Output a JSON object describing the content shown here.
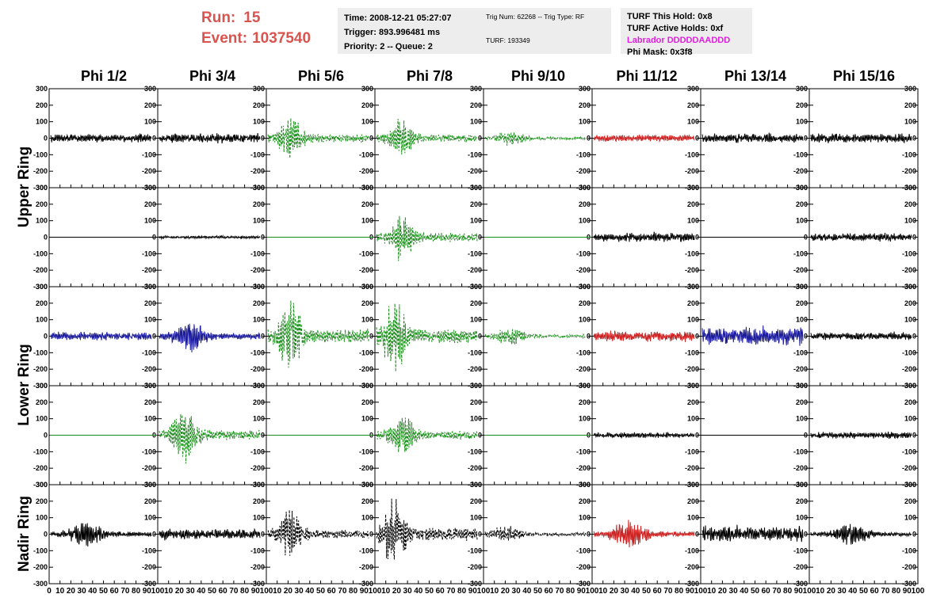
{
  "header": {
    "run_label": "Run:",
    "run_value": "15",
    "event_label": "Event:",
    "event_value": "1037540",
    "time": "Time: 2008-12-21 05:27:07",
    "trigger": "Trigger: 893.996481 ms",
    "priority": "Priority: 2 -- Queue: 2",
    "trig_num": "Trig Num: 62268 -- Trig Type: RF",
    "turf": "TURF: 193349",
    "turf_hold": "TURF This Hold: 0x8",
    "turf_active": "TURF Active Holds: 0xf",
    "labrador": "Labrador DDDDDAADDD",
    "phi_mask": "Phi Mask: 0x3f8"
  },
  "colors": {
    "run_text": "#d9534f",
    "labrador_text": "#e020e0",
    "black": "#000000",
    "green": "#1a8c1a",
    "blue": "#1c1c9c",
    "red": "#cc2222"
  },
  "chart_data": {
    "type": "line",
    "columns": [
      "Phi 1/2",
      "Phi 3/4",
      "Phi 5/6",
      "Phi 7/8",
      "Phi 9/10",
      "Phi 11/12",
      "Phi 13/14",
      "Phi 15/16"
    ],
    "rows": [
      "Upper Ring",
      "Lower Ring",
      "Nadir Ring"
    ],
    "ylim": [
      -300,
      300
    ],
    "yticks": [
      -300,
      -200,
      -100,
      0,
      100,
      200,
      300
    ],
    "xlim": [
      0,
      100
    ],
    "xticks": [
      0,
      10,
      20,
      30,
      40,
      50,
      60,
      70,
      80,
      90,
      100
    ],
    "xtick_labels": [
      "0",
      "10",
      "20",
      "30",
      "40",
      "50",
      "60",
      "70",
      "80",
      "90",
      "100"
    ],
    "panels": [
      [
        {
          "color": "black",
          "dash": false,
          "amp": 30,
          "peak": null
        },
        {
          "color": "black",
          "dash": false,
          "amp": 35,
          "peak": null
        },
        {
          "color": "green",
          "dash": true,
          "amp": 150,
          "peak": [
            22,
            8
          ]
        },
        {
          "color": "green",
          "dash": true,
          "amp": 130,
          "peak": [
            25,
            8
          ]
        },
        {
          "color": "green",
          "dash": true,
          "amp": 50,
          "peak": [
            25,
            10
          ]
        },
        {
          "color": "red",
          "dash": false,
          "amp": 25,
          "peak": null
        },
        {
          "color": "black",
          "dash": false,
          "amp": 35,
          "peak": null
        },
        {
          "color": "black",
          "dash": false,
          "amp": 35,
          "peak": null
        }
      ],
      [
        {
          "color": "black",
          "dash": false,
          "amp": 0,
          "peak": null
        },
        {
          "color": "black",
          "dash": false,
          "amp": 10,
          "peak": null
        },
        {
          "color": "green",
          "dash": false,
          "amp": 0,
          "peak": null
        },
        {
          "color": "green",
          "dash": true,
          "amp": 160,
          "peak": [
            25,
            8
          ]
        },
        {
          "color": "green",
          "dash": false,
          "amp": 0,
          "peak": null
        },
        {
          "color": "black",
          "dash": false,
          "amp": 35,
          "peak": null
        },
        {
          "color": "black",
          "dash": false,
          "amp": 0,
          "peak": null
        },
        {
          "color": "black",
          "dash": false,
          "amp": 30,
          "peak": null
        }
      ],
      [
        {
          "color": "blue",
          "dash": false,
          "amp": 30,
          "peak": null
        },
        {
          "color": "blue",
          "dash": false,
          "amp": 110,
          "peak": [
            30,
            10
          ]
        },
        {
          "color": "green",
          "dash": true,
          "amp": 240,
          "peak": [
            22,
            8
          ]
        },
        {
          "color": "green",
          "dash": true,
          "amp": 240,
          "peak": [
            18,
            8
          ]
        },
        {
          "color": "green",
          "dash": true,
          "amp": 60,
          "peak": [
            25,
            10
          ]
        },
        {
          "color": "red",
          "dash": false,
          "amp": 40,
          "peak": null
        },
        {
          "color": "blue",
          "dash": false,
          "amp": 70,
          "peak": null
        },
        {
          "color": "black",
          "dash": false,
          "amp": 30,
          "peak": null
        }
      ],
      [
        {
          "color": "green",
          "dash": false,
          "amp": 0,
          "peak": null
        },
        {
          "color": "green",
          "dash": true,
          "amp": 180,
          "peak": [
            25,
            8
          ]
        },
        {
          "color": "green",
          "dash": false,
          "amp": 0,
          "peak": null
        },
        {
          "color": "green",
          "dash": true,
          "amp": 150,
          "peak": [
            25,
            8
          ]
        },
        {
          "color": "green",
          "dash": false,
          "amp": 0,
          "peak": null
        },
        {
          "color": "black",
          "dash": false,
          "amp": 20,
          "peak": null
        },
        {
          "color": "black",
          "dash": false,
          "amp": 0,
          "peak": null
        },
        {
          "color": "black",
          "dash": false,
          "amp": 25,
          "peak": null
        }
      ],
      [
        {
          "color": "black",
          "dash": false,
          "amp": 80,
          "peak": [
            35,
            12
          ]
        },
        {
          "color": "black",
          "dash": false,
          "amp": 40,
          "peak": null
        },
        {
          "color": "black",
          "dash": true,
          "amp": 160,
          "peak": [
            22,
            8
          ]
        },
        {
          "color": "black",
          "dash": true,
          "amp": 230,
          "peak": [
            18,
            8
          ]
        },
        {
          "color": "black",
          "dash": true,
          "amp": 60,
          "peak": [
            20,
            10
          ]
        },
        {
          "color": "red",
          "dash": false,
          "amp": 90,
          "peak": [
            35,
            12
          ]
        },
        {
          "color": "black",
          "dash": false,
          "amp": 60,
          "peak": null
        },
        {
          "color": "black",
          "dash": false,
          "amp": 70,
          "peak": [
            40,
            12
          ]
        }
      ]
    ]
  }
}
